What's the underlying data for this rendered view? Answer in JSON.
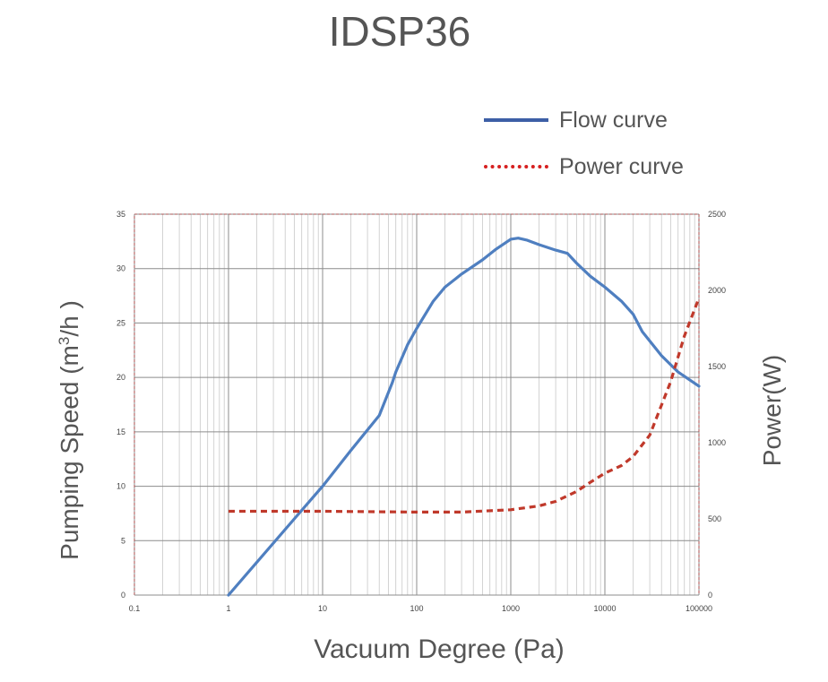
{
  "chart_data": {
    "type": "line",
    "title": "IDSP36",
    "xlabel": "Vacuum Degree (Pa)",
    "ylabel_left": "Pumping Speed (m3/h )",
    "ylabel_left_parts": {
      "before": "Pumping Speed (m",
      "sup": "3",
      "after": "/h )"
    },
    "ylabel_right": "Power(W)",
    "x_scale": "log",
    "xlim": [
      0.1,
      100000
    ],
    "x_ticks": [
      "0.1",
      "1",
      "10",
      "100",
      "1000",
      "10000",
      "100000"
    ],
    "ylim_left": [
      0,
      35
    ],
    "y_ticks_left": [
      "0",
      "5",
      "10",
      "15",
      "20",
      "25",
      "30",
      "35"
    ],
    "ylim_right": [
      0,
      2500
    ],
    "y_ticks_right": [
      "0",
      "500",
      "1000",
      "1500",
      "2000",
      "2500"
    ],
    "grid": true,
    "legend_position": "top-right",
    "series": [
      {
        "name": "Flow curve",
        "axis": "left",
        "color": "#4f7fc0",
        "style": "solid",
        "points": [
          [
            1,
            0
          ],
          [
            5,
            7
          ],
          [
            10,
            10
          ],
          [
            20,
            13.3
          ],
          [
            40,
            16.5
          ],
          [
            55,
            19.5
          ],
          [
            60,
            20.5
          ],
          [
            80,
            23
          ],
          [
            100,
            24.5
          ],
          [
            150,
            27
          ],
          [
            200,
            28.3
          ],
          [
            300,
            29.5
          ],
          [
            500,
            30.8
          ],
          [
            700,
            31.8
          ],
          [
            1000,
            32.7
          ],
          [
            1200,
            32.8
          ],
          [
            1500,
            32.6
          ],
          [
            2000,
            32.2
          ],
          [
            3000,
            31.7
          ],
          [
            4000,
            31.4
          ],
          [
            5000,
            30.5
          ],
          [
            7000,
            29.3
          ],
          [
            10000,
            28.3
          ],
          [
            15000,
            27
          ],
          [
            20000,
            25.8
          ],
          [
            25000,
            24.2
          ],
          [
            40000,
            22
          ],
          [
            60000,
            20.5
          ],
          [
            100000,
            19.2
          ]
        ]
      },
      {
        "name": "Power curve",
        "axis": "right",
        "color": "#c0392b",
        "style": "dashed",
        "points": [
          [
            1,
            550
          ],
          [
            10,
            550
          ],
          [
            100,
            545
          ],
          [
            300,
            545
          ],
          [
            1000,
            560
          ],
          [
            2000,
            585
          ],
          [
            3000,
            615
          ],
          [
            5000,
            680
          ],
          [
            7000,
            740
          ],
          [
            10000,
            800
          ],
          [
            15000,
            850
          ],
          [
            20000,
            910
          ],
          [
            30000,
            1050
          ],
          [
            50000,
            1400
          ],
          [
            70000,
            1700
          ],
          [
            100000,
            1950
          ]
        ]
      }
    ]
  }
}
